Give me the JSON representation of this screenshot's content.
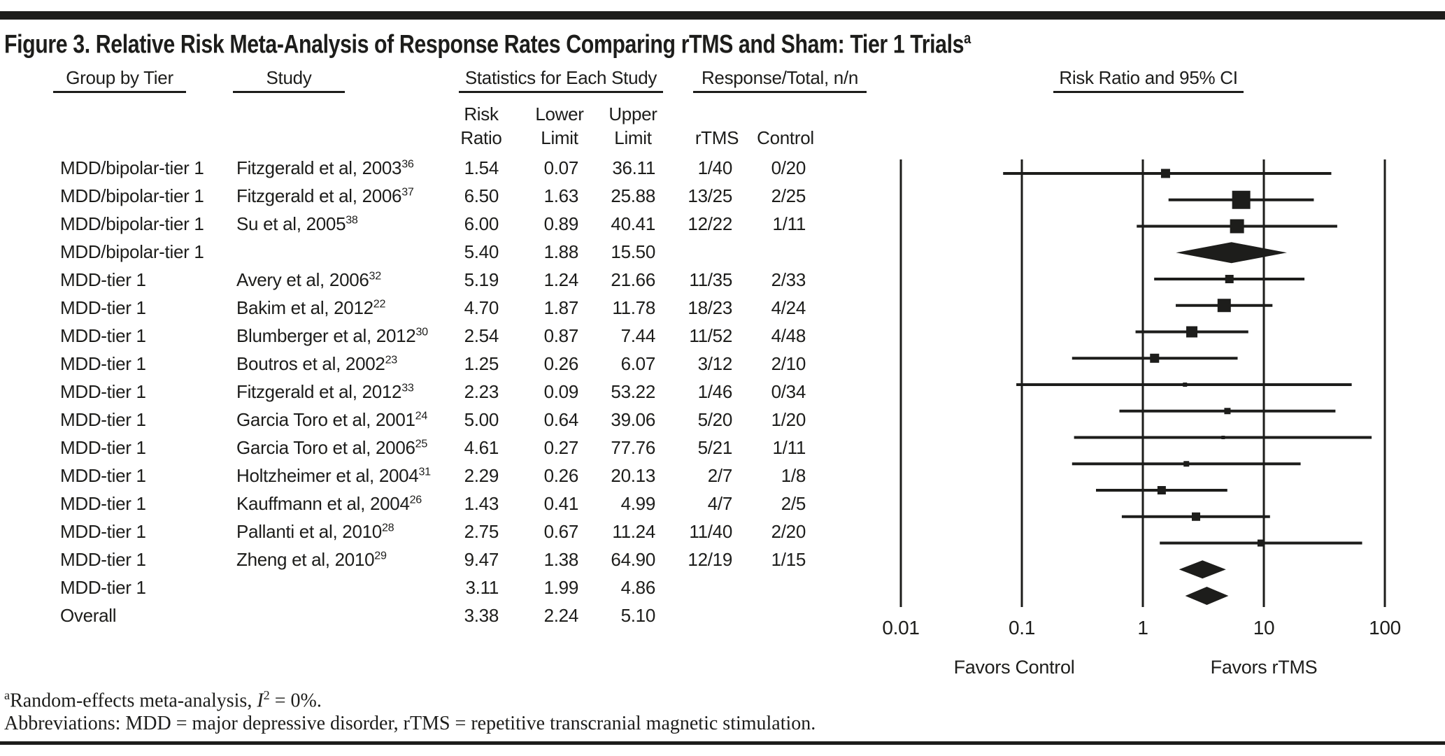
{
  "figure": {
    "title": "Figure 3. Relative Risk Meta-Analysis of Response Rates Comparing rTMS and Sham: Tier 1 Trials",
    "title_superscript": "a"
  },
  "table": {
    "headers": {
      "group": "Group by Tier",
      "study": "Study",
      "stats": "Statistics for Each Study",
      "response": "Response/Total, n/n",
      "risk_ci": "Risk Ratio and 95% CI"
    },
    "subheaders": {
      "risk": "Risk\nRatio",
      "lower": "Lower\nLimit",
      "upper": "Upper\nLimit",
      "rtms": "rTMS",
      "control": "Control"
    }
  },
  "chart_data": {
    "type": "forest",
    "x_scale": "log",
    "xlim": [
      0.01,
      100
    ],
    "x_ticks": [
      "0.01",
      "0.1",
      "1",
      "10",
      "100"
    ],
    "x_tick_values": [
      0.01,
      0.1,
      1,
      10,
      100
    ],
    "axis_label_left": "Favors Control",
    "axis_label_right": "Favors rTMS",
    "marker_color": "#1d1d1b",
    "rows": [
      {
        "group": "MDD/bipolar-tier 1",
        "study": "Fitzgerald et al, 2003",
        "ref": "36",
        "risk_ratio": "1.54",
        "lower": "0.07",
        "upper": "36.11",
        "rtms": "1/40",
        "control": "0/20",
        "marker": "square",
        "size": 13
      },
      {
        "group": "MDD/bipolar-tier 1",
        "study": "Fitzgerald et al, 2006",
        "ref": "37",
        "risk_ratio": "6.50",
        "lower": "1.63",
        "upper": "25.88",
        "rtms": "13/25",
        "control": "2/25",
        "marker": "square",
        "size": 26
      },
      {
        "group": "MDD/bipolar-tier 1",
        "study": "Su et al, 2005",
        "ref": "38",
        "risk_ratio": "6.00",
        "lower": "0.89",
        "upper": "40.41",
        "rtms": "12/22",
        "control": "1/11",
        "marker": "square",
        "size": 20
      },
      {
        "group": "MDD/bipolar-tier 1",
        "study": "",
        "ref": "",
        "risk_ratio": "5.40",
        "lower": "1.88",
        "upper": "15.50",
        "rtms": "",
        "control": "",
        "marker": "diamond",
        "size": 15
      },
      {
        "group": "MDD-tier 1",
        "study": "Avery et al, 2006",
        "ref": "32",
        "risk_ratio": "5.19",
        "lower": "1.24",
        "upper": "21.66",
        "rtms": "11/35",
        "control": "2/33",
        "marker": "square",
        "size": 12
      },
      {
        "group": "MDD-tier 1",
        "study": "Bakim et al, 2012",
        "ref": "22",
        "risk_ratio": "4.70",
        "lower": "1.87",
        "upper": "11.78",
        "rtms": "18/23",
        "control": "4/24",
        "marker": "square",
        "size": 19
      },
      {
        "group": "MDD-tier 1",
        "study": "Blumberger et al, 2012",
        "ref": "30",
        "risk_ratio": "2.54",
        "lower": "0.87",
        "upper": "7.44",
        "rtms": "11/52",
        "control": "4/48",
        "marker": "square",
        "size": 16
      },
      {
        "group": "MDD-tier 1",
        "study": "Boutros et al, 2002",
        "ref": "23",
        "risk_ratio": "1.25",
        "lower": "0.26",
        "upper": "6.07",
        "rtms": "3/12",
        "control": "2/10",
        "marker": "square",
        "size": 13
      },
      {
        "group": "MDD-tier 1",
        "study": "Fitzgerald et al, 2012",
        "ref": "33",
        "risk_ratio": "2.23",
        "lower": "0.09",
        "upper": "53.22",
        "rtms": "1/46",
        "control": "0/34",
        "marker": "square",
        "size": 6
      },
      {
        "group": "MDD-tier 1",
        "study": "Garcia Toro et al, 2001",
        "ref": "24",
        "risk_ratio": "5.00",
        "lower": "0.64",
        "upper": "39.06",
        "rtms": "5/20",
        "control": "1/20",
        "marker": "square",
        "size": 9
      },
      {
        "group": "MDD-tier 1",
        "study": "Garcia Toro et al, 2006",
        "ref": "25",
        "risk_ratio": "4.61",
        "lower": "0.27",
        "upper": "77.76",
        "rtms": "5/21",
        "control": "1/11",
        "marker": "square",
        "size": 5
      },
      {
        "group": "MDD-tier 1",
        "study": "Holtzheimer et al, 2004",
        "ref": "31",
        "risk_ratio": "2.29",
        "lower": "0.26",
        "upper": "20.13",
        "rtms": "2/7",
        "control": "1/8",
        "marker": "square",
        "size": 8
      },
      {
        "group": "MDD-tier 1",
        "study": "Kauffmann et al, 2004",
        "ref": "26",
        "risk_ratio": "1.43",
        "lower": "0.41",
        "upper": "4.99",
        "rtms": "4/7",
        "control": "2/5",
        "marker": "square",
        "size": 12
      },
      {
        "group": "MDD-tier 1",
        "study": "Pallanti et al, 2010",
        "ref": "28",
        "risk_ratio": "2.75",
        "lower": "0.67",
        "upper": "11.24",
        "rtms": "11/40",
        "control": "2/20",
        "marker": "square",
        "size": 12
      },
      {
        "group": "MDD-tier 1",
        "study": "Zheng et al, 2010",
        "ref": "29",
        "risk_ratio": "9.47",
        "lower": "1.38",
        "upper": "64.90",
        "rtms": "12/19",
        "control": "1/15",
        "marker": "square",
        "size": 10
      },
      {
        "group": "MDD-tier 1",
        "study": "",
        "ref": "",
        "risk_ratio": "3.11",
        "lower": "1.99",
        "upper": "4.86",
        "rtms": "",
        "control": "",
        "marker": "diamond",
        "size": 13
      },
      {
        "group": "Overall",
        "study": "",
        "ref": "",
        "risk_ratio": "3.38",
        "lower": "2.24",
        "upper": "5.10",
        "rtms": "",
        "control": "",
        "marker": "diamond",
        "size": 13
      }
    ]
  },
  "footnotes": {
    "note1_sup": "a",
    "note1_text": "Random-effects meta-analysis, ",
    "note1_stat_symbol": "I",
    "note1_stat_sup": "2",
    "note1_value": " = 0%.",
    "note2": "Abbreviations: MDD = major depressive disorder, rTMS = repetitive transcranial magnetic stimulation."
  }
}
